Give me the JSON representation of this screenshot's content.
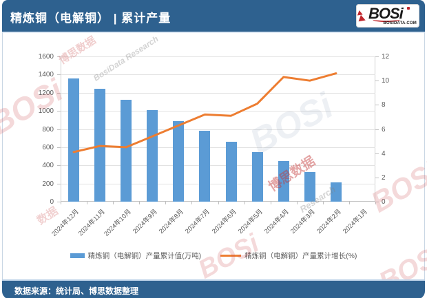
{
  "header": {
    "title": "精炼铜（电解铜） | 累计产量",
    "logo": {
      "brand": "BOSi",
      "site": "BOSIDATA.COM"
    }
  },
  "footer": {
    "source": "数据来源：统计局、博思数据整理"
  },
  "colors": {
    "header_bg": "#2E618F",
    "bar": "#5B9BD5",
    "line": "#ED7D31",
    "axis_text": "#595959",
    "gridline": "#E2E2E2",
    "logo_red": "#C0272D"
  },
  "watermarks": [
    "BOSi",
    "博思数据",
    "BosiData Research",
    "BOSi",
    "博思数据",
    "Research",
    "BOSi",
    "BOSi",
    "数据",
    "BOSi"
  ],
  "chart_data": {
    "type": "combo-bar-line",
    "title": "精炼铜（电解铜） | 累计产量",
    "categories": [
      "2024年12月",
      "2024年11月",
      "2024年10月",
      "2024年9月",
      "2024年8月",
      "2024年7月",
      "2024年6月",
      "2024年5月",
      "2024年4月",
      "2024年3月",
      "2024年2月",
      "2024年1月"
    ],
    "series": [
      {
        "name": "精炼铜（电解铜）产量累计值(万吨)",
        "type": "bar",
        "axis": "left",
        "values": [
          1360,
          1245,
          1125,
          1005,
          890,
          780,
          663,
          545,
          445,
          328,
          213,
          null
        ]
      },
      {
        "name": "精炼铜（电解铜）产量累计增长(%)",
        "type": "line",
        "axis": "right",
        "values": [
          4.1,
          4.6,
          4.5,
          5.4,
          6.3,
          7.2,
          7.1,
          8.1,
          10.3,
          10.0,
          10.6,
          null
        ]
      }
    ],
    "left_axis": {
      "ticks": [
        0,
        200,
        400,
        600,
        800,
        1000,
        1200,
        1400,
        1600
      ],
      "min": 0,
      "max": 1600
    },
    "right_axis": {
      "ticks": [
        0,
        2,
        4,
        6,
        8,
        10,
        12
      ],
      "min": 0,
      "max": 12
    },
    "grid": true,
    "legend_position": "bottom"
  }
}
